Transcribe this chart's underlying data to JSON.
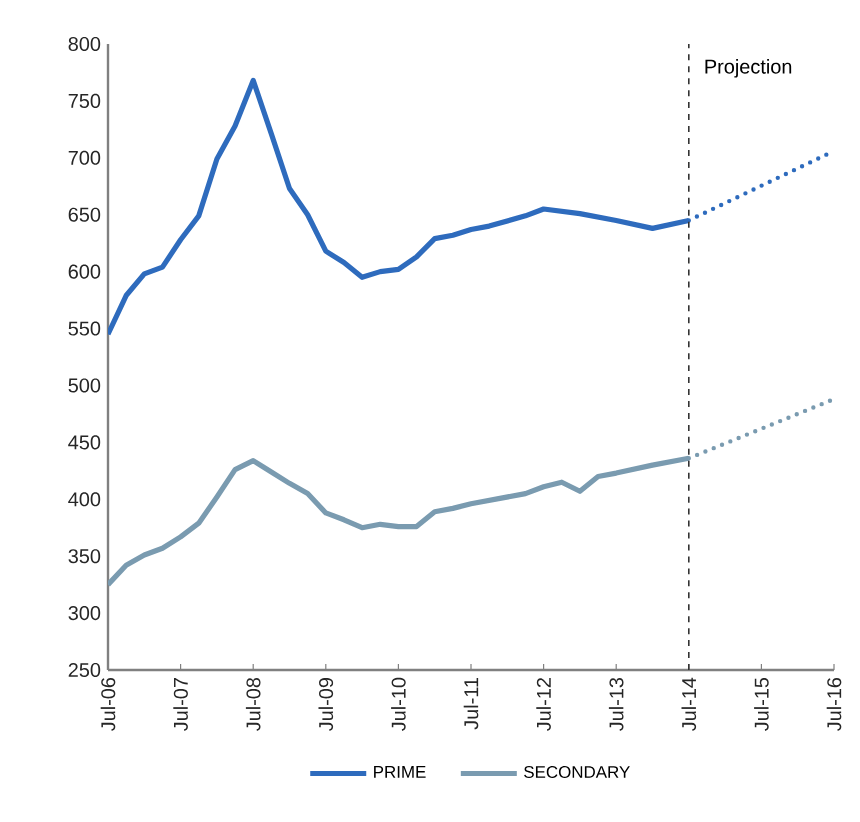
{
  "chart_data": {
    "type": "line",
    "xlim": [
      "2006-07",
      "2016-07"
    ],
    "ylim": [
      250,
      800
    ],
    "xticks": [
      {
        "value": "2006-07",
        "label": "Jul-06"
      },
      {
        "value": "2007-07",
        "label": "Jul-07"
      },
      {
        "value": "2008-07",
        "label": "Jul-08"
      },
      {
        "value": "2009-07",
        "label": "Jul-09"
      },
      {
        "value": "2010-07",
        "label": "Jul-10"
      },
      {
        "value": "2011-07",
        "label": "Jul-11"
      },
      {
        "value": "2012-07",
        "label": "Jul-12"
      },
      {
        "value": "2013-07",
        "label": "Jul-13"
      },
      {
        "value": "2014-07",
        "label": "Jul-14"
      },
      {
        "value": "2015-07",
        "label": "Jul-15"
      },
      {
        "value": "2016-07",
        "label": "Jul-16"
      }
    ],
    "yticks": [
      250,
      300,
      350,
      400,
      450,
      500,
      550,
      600,
      650,
      700,
      750,
      800
    ],
    "legend": "bottom",
    "marker": "none",
    "grid": false,
    "ref_lines": [
      {
        "axis": "x",
        "value": "2014-07",
        "label": "Projection",
        "color": "#333333",
        "line_style": "dashed"
      }
    ],
    "series": [
      {
        "name": "PRIME",
        "color": "#2e6bbd",
        "line_style": "solid",
        "x": [
          "2006-07",
          "2006-10",
          "2007-01",
          "2007-04",
          "2007-07",
          "2007-10",
          "2008-01",
          "2008-04",
          "2008-07",
          "2008-10",
          "2009-01",
          "2009-04",
          "2009-07",
          "2009-10",
          "2010-01",
          "2010-04",
          "2010-07",
          "2010-10",
          "2011-01",
          "2011-04",
          "2011-07",
          "2011-10",
          "2012-04",
          "2012-07",
          "2013-01",
          "2013-07",
          "2014-01",
          "2014-07"
        ],
        "values": [
          545,
          579,
          598,
          604,
          628,
          649,
          699,
          728,
          768,
          721,
          673,
          650,
          618,
          608,
          595,
          600,
          602,
          613,
          629,
          632,
          637,
          640,
          649,
          655,
          651,
          645,
          638,
          645
        ]
      },
      {
        "color": "#2e6bbd",
        "line_style": "dotted",
        "x": [
          "2014-07",
          "2016-07"
        ],
        "values": [
          645,
          706
        ]
      },
      {
        "name": "SECONDARY",
        "color": "#7a9bb0",
        "line_style": "solid",
        "x": [
          "2006-07",
          "2006-10",
          "2007-01",
          "2007-04",
          "2007-07",
          "2007-10",
          "2008-01",
          "2008-04",
          "2008-07",
          "2008-10",
          "2009-01",
          "2009-04",
          "2009-07",
          "2009-10",
          "2010-01",
          "2010-04",
          "2010-07",
          "2010-10",
          "2011-01",
          "2011-04",
          "2011-07",
          "2011-10",
          "2012-04",
          "2012-07",
          "2012-10",
          "2013-01",
          "2013-04",
          "2013-07",
          "2014-01",
          "2014-07"
        ],
        "values": [
          325,
          342,
          351,
          357,
          367,
          379,
          402,
          426,
          434,
          424,
          414,
          405,
          388,
          382,
          375,
          378,
          376,
          376,
          389,
          392,
          396,
          399,
          405,
          411,
          415,
          407,
          420,
          423,
          430,
          436
        ]
      },
      {
        "color": "#7a9bb0",
        "line_style": "dotted",
        "x": [
          "2014-07",
          "2016-07"
        ],
        "values": [
          436,
          488
        ]
      }
    ]
  }
}
